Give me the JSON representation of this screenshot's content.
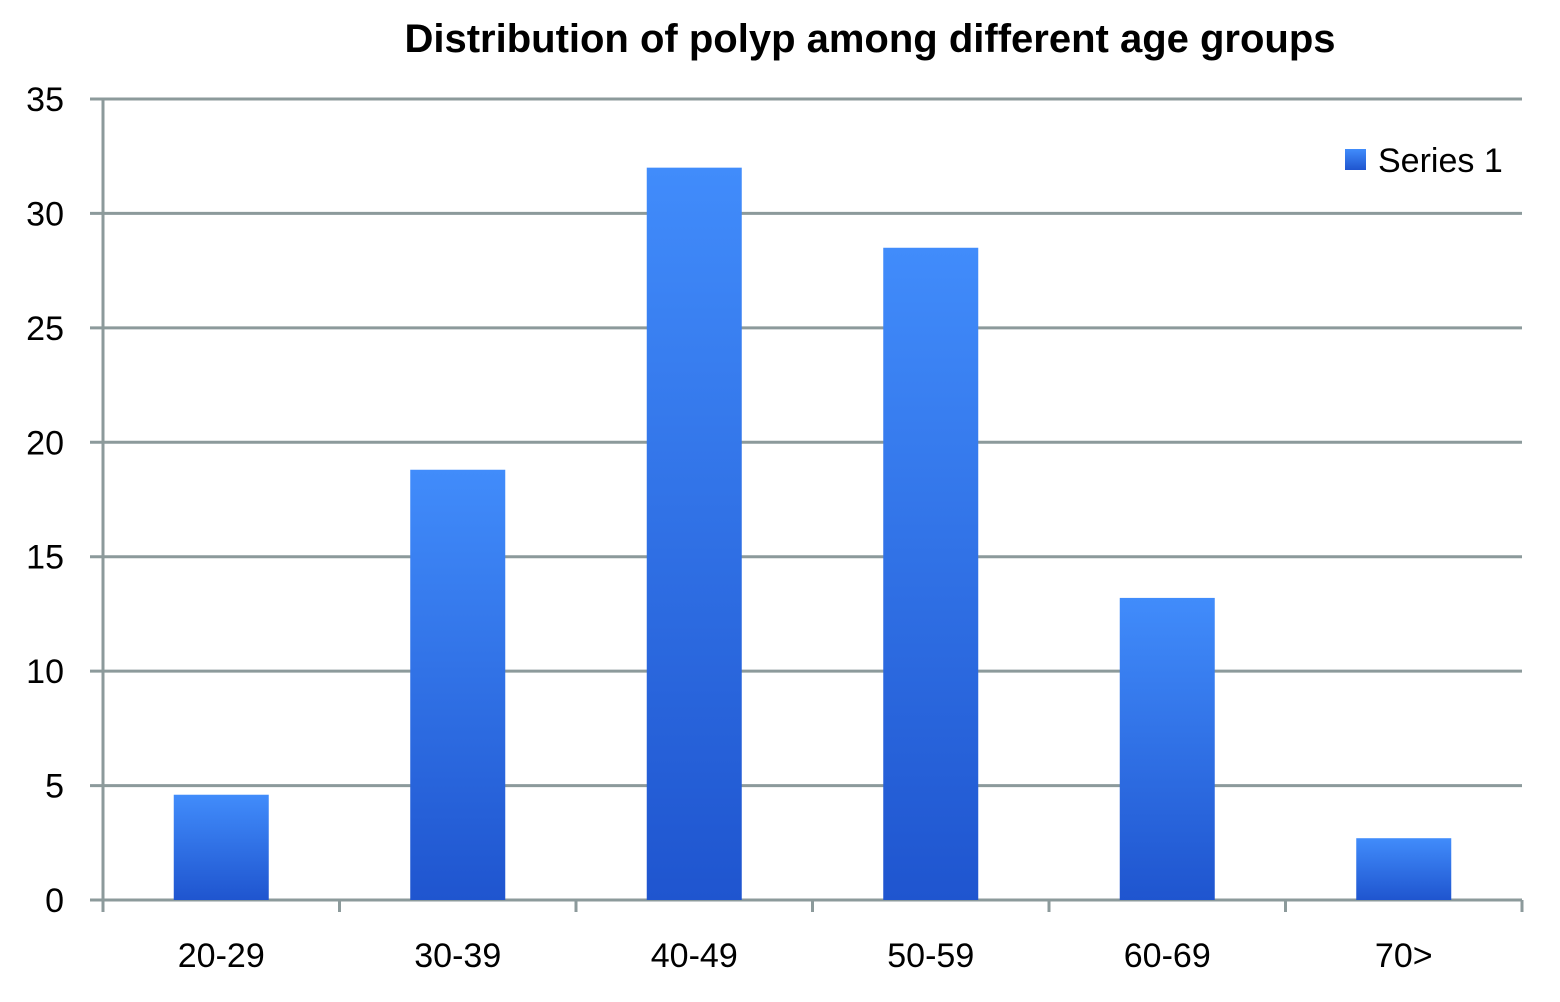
{
  "chart_data": {
    "type": "bar",
    "title": "Distribution of polyp among different age groups",
    "xlabel": "",
    "ylabel": "",
    "categories": [
      "20-29",
      "30-39",
      "40-49",
      "50-59",
      "60-69",
      "70>"
    ],
    "series": [
      {
        "name": "Series 1",
        "values": [
          4.6,
          18.8,
          32,
          28.5,
          13.2,
          2.7
        ],
        "color": "#2f74e6"
      }
    ],
    "ylim": [
      0,
      35
    ],
    "yticks": [
      0,
      5,
      10,
      15,
      20,
      25,
      30,
      35
    ],
    "grid": true,
    "legend": "top-right"
  }
}
